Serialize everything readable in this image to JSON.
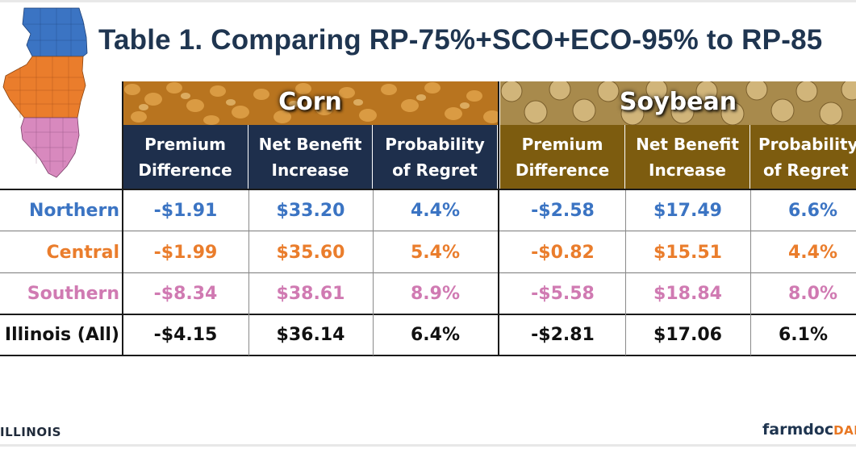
{
  "title": "Table 1. Comparing RP-75%+SCO+ECO-95% to RP-85",
  "colors": {
    "northern": "#3b74c3",
    "central": "#ea7d2c",
    "southern": "#d07ab2",
    "all": "#111111",
    "corn_header": "#1e2f4c",
    "soybean_header": "#7d5c0f",
    "title": "#1f3550"
  },
  "crops": [
    {
      "name": "Corn",
      "columns": [
        {
          "line1": "Premium",
          "line2": "Difference"
        },
        {
          "line1": "Net Benefit",
          "line2": "Increase"
        },
        {
          "line1": "Probability",
          "line2": "of Regret"
        }
      ]
    },
    {
      "name": "Soybean",
      "columns": [
        {
          "line1": "Premium",
          "line2": "Difference"
        },
        {
          "line1": "Net Benefit",
          "line2": "Increase"
        },
        {
          "line1": "Probability",
          "line2": "of Regret"
        }
      ]
    }
  ],
  "rows": [
    {
      "region": "Northern",
      "values": [
        "-$1.91",
        "$33.20",
        "4.4%",
        "-$2.58",
        "$17.49",
        "6.6%"
      ]
    },
    {
      "region": "Central",
      "values": [
        "-$1.99",
        "$35.60",
        "5.4%",
        "-$0.82",
        "$15.51",
        "4.4%"
      ]
    },
    {
      "region": "Southern",
      "values": [
        "-$8.34",
        "$38.61",
        "8.9%",
        "-$5.58",
        "$18.84",
        "8.0%"
      ]
    },
    {
      "region": "Illinois (All)",
      "values": [
        "-$4.15",
        "$36.14",
        "6.4%",
        "-$2.81",
        "$17.06",
        "6.1%"
      ]
    }
  ],
  "map_regions": [
    "Northern",
    "Central",
    "Southern"
  ],
  "footer": {
    "left": "ILLINOIS",
    "right_main": "farmdoc",
    "right_accent": "DAI"
  }
}
